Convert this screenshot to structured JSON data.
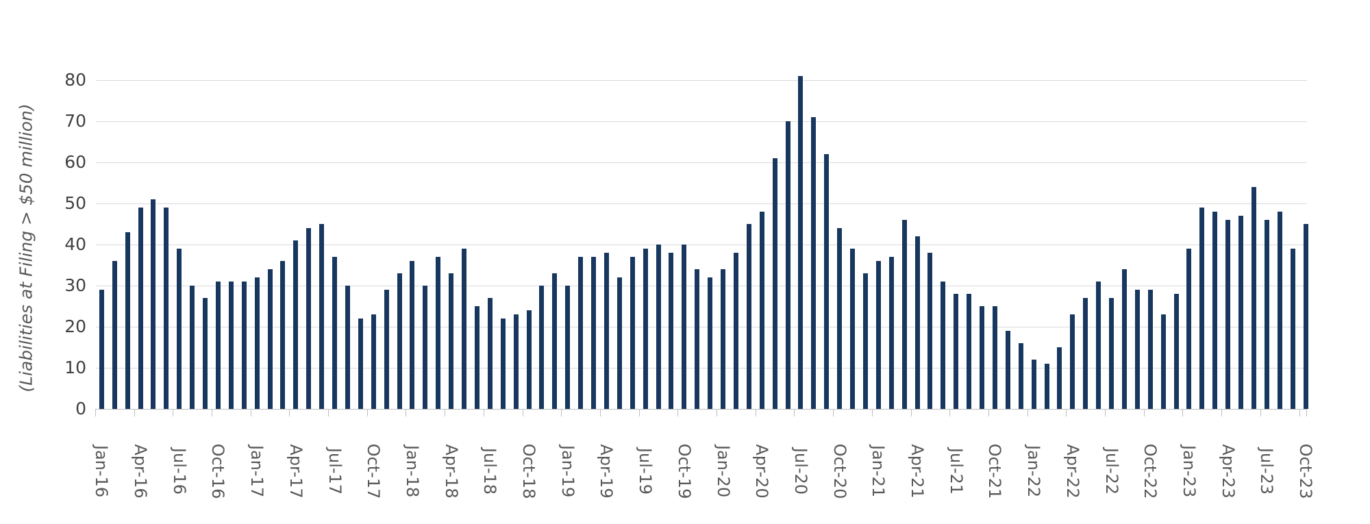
{
  "chart_data": {
    "type": "bar",
    "title": "",
    "xlabel": "",
    "ylabel": "(Liabilities at Filing > $50 million)",
    "ylim": [
      0,
      80
    ],
    "yticks": [
      0,
      10,
      20,
      30,
      40,
      50,
      60,
      70,
      80
    ],
    "grid": true,
    "legend": false,
    "x_tick_labels": [
      "Jan-16",
      "Apr-16",
      "Jul-16",
      "Oct-16",
      "Jan-17",
      "Apr-17",
      "Jul-17",
      "Oct-17",
      "Jan-18",
      "Apr-18",
      "Jul-18",
      "Oct-18",
      "Jan-19",
      "Apr-19",
      "Jul-19",
      "Oct-19",
      "Jan-20",
      "Apr-20",
      "Jul-20",
      "Oct-20",
      "Jan-21",
      "Apr-21",
      "Jul-21",
      "Oct-21",
      "Jan-22",
      "Apr-22",
      "Jul-22",
      "Oct-22",
      "Jan-23",
      "Apr-23",
      "Jul-23",
      "Oct-23"
    ],
    "categories": [
      "Jan-16",
      "Feb-16",
      "Mar-16",
      "Apr-16",
      "May-16",
      "Jun-16",
      "Jul-16",
      "Aug-16",
      "Sep-16",
      "Oct-16",
      "Nov-16",
      "Dec-16",
      "Jan-17",
      "Feb-17",
      "Mar-17",
      "Apr-17",
      "May-17",
      "Jun-17",
      "Jul-17",
      "Aug-17",
      "Sep-17",
      "Oct-17",
      "Nov-17",
      "Dec-17",
      "Jan-18",
      "Feb-18",
      "Mar-18",
      "Apr-18",
      "May-18",
      "Jun-18",
      "Jul-18",
      "Aug-18",
      "Sep-18",
      "Oct-18",
      "Nov-18",
      "Dec-18",
      "Jan-19",
      "Feb-19",
      "Mar-19",
      "Apr-19",
      "May-19",
      "Jun-19",
      "Jul-19",
      "Aug-19",
      "Sep-19",
      "Oct-19",
      "Nov-19",
      "Dec-19",
      "Jan-20",
      "Feb-20",
      "Mar-20",
      "Apr-20",
      "May-20",
      "Jun-20",
      "Jul-20",
      "Aug-20",
      "Sep-20",
      "Oct-20",
      "Nov-20",
      "Dec-20",
      "Jan-21",
      "Feb-21",
      "Mar-21",
      "Apr-21",
      "May-21",
      "Jun-21",
      "Jul-21",
      "Aug-21",
      "Sep-21",
      "Oct-21",
      "Nov-21",
      "Dec-21",
      "Jan-22",
      "Feb-22",
      "Mar-22",
      "Apr-22",
      "May-22",
      "Jun-22",
      "Jul-22",
      "Aug-22",
      "Sep-22",
      "Oct-22",
      "Nov-22",
      "Dec-22",
      "Jan-23",
      "Feb-23",
      "Mar-23",
      "Apr-23",
      "May-23",
      "Jun-23",
      "Jul-23",
      "Aug-23",
      "Sep-23",
      "Oct-23"
    ],
    "values": [
      29,
      36,
      43,
      49,
      51,
      49,
      39,
      30,
      27,
      31,
      31,
      31,
      32,
      34,
      36,
      41,
      44,
      45,
      37,
      30,
      22,
      23,
      29,
      33,
      36,
      30,
      37,
      33,
      39,
      25,
      27,
      22,
      23,
      24,
      30,
      33,
      30,
      37,
      37,
      38,
      32,
      37,
      39,
      40,
      38,
      40,
      34,
      32,
      34,
      38,
      45,
      48,
      61,
      70,
      81,
      71,
      62,
      44,
      39,
      33,
      36,
      37,
      46,
      42,
      38,
      31,
      28,
      28,
      25,
      25,
      19,
      16,
      12,
      11,
      15,
      23,
      27,
      31,
      27,
      34,
      29,
      29,
      23,
      28,
      39,
      49,
      48,
      46,
      47,
      54,
      46,
      48,
      39,
      45
    ],
    "colors": {
      "bar": "#17375E",
      "gridline": "#D9D9D9",
      "axis": "#BFBFBF",
      "y_tick_label": "#404040",
      "x_tick_label": "#595959",
      "y_axis_title": "#595959",
      "background": "#FFFFFF"
    }
  }
}
